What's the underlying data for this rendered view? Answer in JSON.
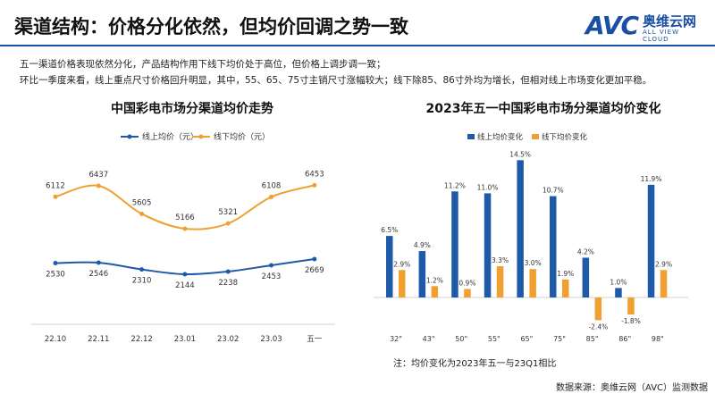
{
  "header": {
    "title": "渠道结构：价格分化依然，但均价回调之势一致"
  },
  "logo": {
    "mark": "AVC",
    "cn": "奥维云网",
    "en": "ALL VIEW CLOUD"
  },
  "description": {
    "line1": "五一渠道价格表现依然分化，产品结构作用下线下均价处于高位，但价格上调步调一致；",
    "line2": "环比一季度来看，线上重点尺寸价格回升明显，其中，55、65、75寸主销尺寸涨幅较大；线下除85、86寸外均为增长，但相对线上市场变化更加平稳。"
  },
  "colors": {
    "online": "#1f5aa8",
    "offline": "#f0a030",
    "brand": "#1a4fa3"
  },
  "chart_data": [
    {
      "type": "line",
      "title": "中国彩电市场分渠道均价走势",
      "categories": [
        "22.10",
        "22.11",
        "22.12",
        "23.01",
        "23.02",
        "23.03",
        "五一"
      ],
      "series": [
        {
          "name": "线上均价（元）",
          "values": [
            2530,
            2546,
            2310,
            2144,
            2238,
            2453,
            2669
          ]
        },
        {
          "name": "线下均价（元）",
          "values": [
            6112,
            6437,
            5605,
            5166,
            5321,
            6108,
            6453
          ]
        }
      ],
      "legend": "top",
      "grid": false
    },
    {
      "type": "bar",
      "title": "2023年五一中国彩电市场分渠道均价变化",
      "categories": [
        "32\"",
        "43\"",
        "50\"",
        "55\"",
        "65\"",
        "75\"",
        "85\"",
        "86\"",
        "98\""
      ],
      "series": [
        {
          "name": "线上均价变化",
          "values": [
            6.5,
            4.9,
            11.2,
            11.0,
            14.5,
            10.7,
            4.2,
            1.0,
            11.9
          ]
        },
        {
          "name": "线下均价变化",
          "values": [
            2.9,
            1.2,
            0.9,
            3.3,
            3.0,
            1.9,
            -2.4,
            -1.8,
            2.9
          ]
        }
      ],
      "unit": "%",
      "legend": "top-left",
      "grid": false
    }
  ],
  "footer": {
    "note": "注：均价变化为2023年五一与23Q1相比",
    "source": "数据来源：奥维云网（AVC）监测数据"
  }
}
